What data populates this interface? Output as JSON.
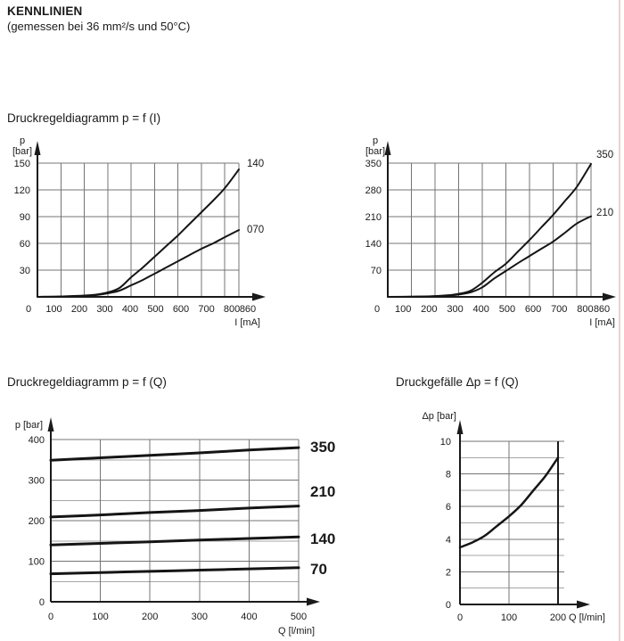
{
  "page": {
    "title": "KENNLINIEN",
    "subtitle": "(gemessen bei 36 mm²/s und 50°C)",
    "border_color": "#ecd2cb"
  },
  "sections": [
    {
      "id": "pfi",
      "heading": "Druckregeldiagramm p = f (I)"
    },
    {
      "id": "pfq",
      "heading": "Druckregeldiagramm p = f (Q)"
    },
    {
      "id": "dpfq",
      "heading": "Druckgefälle Δp = f (Q)"
    }
  ],
  "colors": {
    "text": "#1a1a1a",
    "axis": "#1a1a1a",
    "curve": "#151515",
    "grid_major": "#747474",
    "grid_minor": "#a6a6a6"
  },
  "chart_data": [
    {
      "id": "p_f_i_140",
      "type": "line",
      "title": "Druckregeldiagramm p = f (I), Nenndruck 140 / 070",
      "xlabel": "I [mA]",
      "ylabel": "p [bar]",
      "xlim": [
        0,
        860
      ],
      "ylim": [
        0,
        150
      ],
      "xticks": [
        0,
        100,
        200,
        300,
        400,
        500,
        600,
        700,
        800,
        860
      ],
      "yticks": [
        30,
        60,
        90,
        120,
        150
      ],
      "grid": true,
      "legend_position": "right-of-curve-end",
      "series": [
        {
          "name": "140",
          "x": [
            0,
            100,
            200,
            250,
            300,
            350,
            400,
            450,
            500,
            550,
            600,
            650,
            700,
            750,
            800,
            860
          ],
          "y": [
            0,
            0.5,
            1.5,
            2.5,
            5,
            10,
            22,
            33,
            45,
            57,
            69,
            82,
            95,
            108,
            122,
            143
          ]
        },
        {
          "name": "070",
          "x": [
            0,
            100,
            200,
            250,
            300,
            350,
            400,
            450,
            500,
            550,
            600,
            650,
            700,
            750,
            800,
            860
          ],
          "y": [
            0,
            0.3,
            1,
            2,
            4,
            7,
            13,
            19,
            26,
            33,
            40,
            47,
            54,
            60,
            67,
            75
          ]
        }
      ]
    },
    {
      "id": "p_f_i_350",
      "type": "line",
      "title": "Druckregeldiagramm p = f (I), Nenndruck 350 / 210",
      "xlabel": "I [mA]",
      "ylabel": "p [bar]",
      "xlim": [
        0,
        860
      ],
      "ylim": [
        0,
        350
      ],
      "xticks": [
        0,
        100,
        200,
        300,
        400,
        500,
        600,
        700,
        800,
        860
      ],
      "yticks": [
        70,
        140,
        210,
        280,
        350
      ],
      "grid": true,
      "legend_position": "right-of-curve-end",
      "series": [
        {
          "name": "350",
          "x": [
            0,
            100,
            200,
            250,
            300,
            350,
            400,
            450,
            500,
            550,
            600,
            650,
            700,
            750,
            800,
            860
          ],
          "y": [
            0,
            0.5,
            2,
            4,
            8,
            16,
            37,
            64,
            87,
            118,
            149,
            182,
            215,
            251,
            288,
            348
          ]
        },
        {
          "name": "210",
          "x": [
            0,
            100,
            200,
            250,
            300,
            350,
            400,
            450,
            500,
            550,
            600,
            650,
            700,
            750,
            800,
            860
          ],
          "y": [
            0,
            0.3,
            1.5,
            3,
            6,
            12,
            25,
            48,
            68,
            88,
            107,
            126,
            145,
            168,
            192,
            211
          ]
        }
      ]
    },
    {
      "id": "p_f_q",
      "type": "line",
      "title": "Druckregeldiagramm p = f (Q)",
      "xlabel": "Q [l/min]",
      "ylabel": "p [bar]",
      "xlim": [
        0,
        500
      ],
      "ylim": [
        0,
        400
      ],
      "xticks": [
        0,
        100,
        200,
        300,
        400,
        500
      ],
      "yticks": [
        0,
        100,
        200,
        300,
        400
      ],
      "y_minor_step": 50,
      "grid": true,
      "legend_position": "right-of-curve-end",
      "series": [
        {
          "name": "350",
          "x": [
            0,
            100,
            200,
            300,
            400,
            500
          ],
          "y": [
            349,
            355,
            361,
            367,
            374,
            380
          ]
        },
        {
          "name": "210",
          "x": [
            0,
            100,
            200,
            300,
            400,
            500
          ],
          "y": [
            209,
            214,
            220,
            225,
            231,
            236
          ]
        },
        {
          "name": "140",
          "x": [
            0,
            100,
            200,
            300,
            400,
            500
          ],
          "y": [
            140,
            144,
            148,
            152,
            156,
            160
          ]
        },
        {
          "name": "70",
          "x": [
            0,
            100,
            200,
            300,
            400,
            500
          ],
          "y": [
            69,
            72,
            75,
            78,
            81,
            84
          ]
        }
      ]
    },
    {
      "id": "dp_f_q",
      "type": "line",
      "title": "Druckgefälle Δp = f (Q)",
      "xlabel": "Q [l/min]",
      "ylabel": "Δp [bar]",
      "xlim": [
        0,
        200
      ],
      "ylim": [
        0,
        10
      ],
      "xticks": [
        0,
        100,
        200
      ],
      "yticks": [
        0,
        2,
        4,
        6,
        8,
        10
      ],
      "y_minor_step": 1,
      "grid": true,
      "legend_position": "none",
      "series": [
        {
          "name": "",
          "x": [
            0,
            25,
            50,
            75,
            100,
            125,
            150,
            175,
            200
          ],
          "y": [
            3.5,
            3.8,
            4.2,
            4.8,
            5.4,
            6.1,
            7.0,
            7.9,
            9.0
          ]
        }
      ]
    }
  ]
}
